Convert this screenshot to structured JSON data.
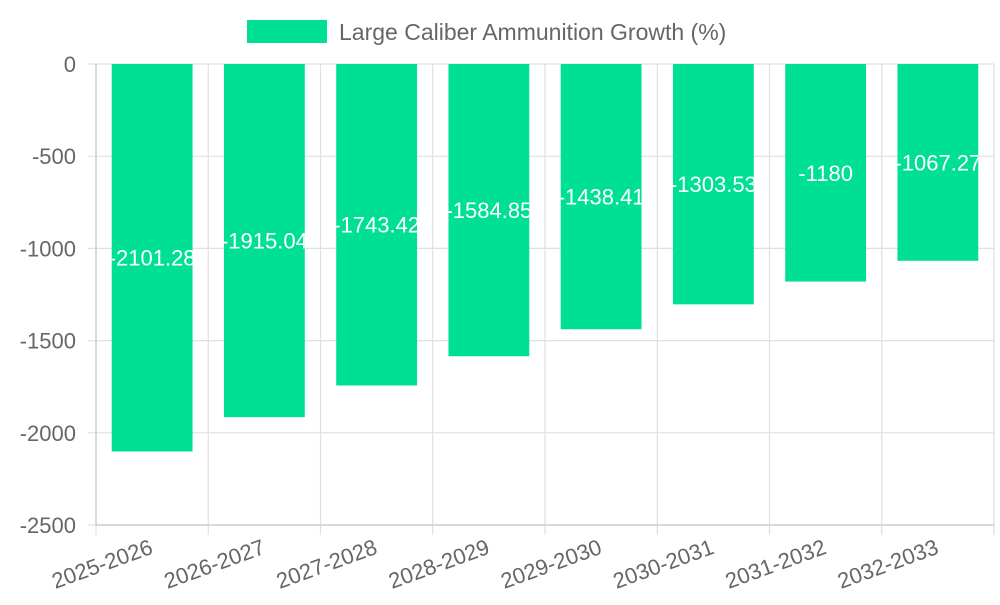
{
  "chart_data": {
    "type": "bar",
    "title": "",
    "legend": "Large Caliber Ammunition Growth (%)",
    "legend_position": "top-center",
    "categories": [
      "2025-2026",
      "2026-2027",
      "2027-2028",
      "2028-2029",
      "2029-2030",
      "2030-2031",
      "2031-2032",
      "2032-2033"
    ],
    "values": [
      -2101.28,
      -1915.04,
      -1743.42,
      -1584.85,
      -1438.41,
      -1303.53,
      -1180,
      -1067.27
    ],
    "data_labels": [
      "-2101.28",
      "-1915.04",
      "-1743.42",
      "-1584.85",
      "-1438.41",
      "-1303.53",
      "-1180",
      "-1067.27"
    ],
    "yticks": [
      0,
      -500,
      -1000,
      -1500,
      -2000,
      -2500
    ],
    "ylim": [
      -2500,
      0
    ],
    "xlabel": "",
    "ylabel": "",
    "grid": true,
    "bar_color": "#00e095",
    "grid_color": "#e0e0e0",
    "axis_color": "#cfcfcf",
    "text_color": "#666666"
  }
}
